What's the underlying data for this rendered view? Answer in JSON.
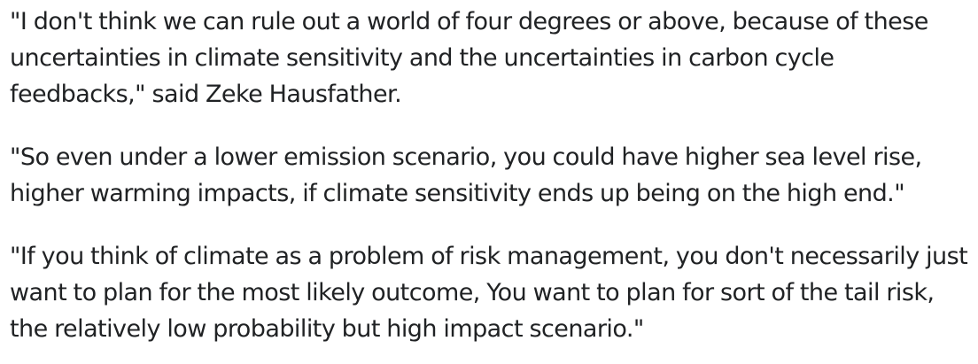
{
  "article": {
    "paragraphs": [
      "\"I don't think we can rule out a world of four degrees or above, because of these uncertainties in climate sensitivity and the uncertainties in carbon cycle feedbacks,\" said Zeke Hausfather.",
      "\"So even under a lower emission scenario, you could have higher sea level rise, higher warming impacts, if climate sensitivity ends up being on the high end.\"",
      "\"If you think of climate as a problem of risk management, you don't necessarily just want to plan for the most likely outcome, You want to plan for sort of the tail risk, the relatively low probability but high impact scenario.\""
    ]
  },
  "colors": {
    "text": "#202224",
    "background": "#ffffff"
  }
}
